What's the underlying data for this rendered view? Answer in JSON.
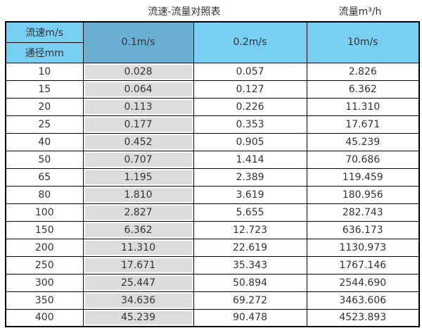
{
  "titles": {
    "main": "流速-流量对照表",
    "unit": "流量m³/h"
  },
  "colors": {
    "header_light_blue": "#79cff2",
    "header_dark_blue": "#69b0d3",
    "highlight_column_gray": "#dcdcdc",
    "border": "#000000",
    "text": "#333333",
    "background": "#ffffff"
  },
  "table": {
    "corner": {
      "velocity_label": "流速m/s",
      "diameter_label": "通径mm"
    },
    "velocity_headers": [
      "0.1m/s",
      "0.2m/s",
      "10m/s"
    ],
    "rows": [
      {
        "diameter": "10",
        "values": [
          "0.028",
          "0.057",
          "2.826"
        ]
      },
      {
        "diameter": "15",
        "values": [
          "0.064",
          "0.127",
          "6.362"
        ]
      },
      {
        "diameter": "20",
        "values": [
          "0.113",
          "0.226",
          "11.310"
        ]
      },
      {
        "diameter": "25",
        "values": [
          "0.177",
          "0.353",
          "17.671"
        ]
      },
      {
        "diameter": "40",
        "values": [
          "0.452",
          "0.905",
          "45.239"
        ]
      },
      {
        "diameter": "50",
        "values": [
          "0.707",
          "1.414",
          "70.686"
        ]
      },
      {
        "diameter": "65",
        "values": [
          "1.195",
          "2.389",
          "119.459"
        ]
      },
      {
        "diameter": "80",
        "values": [
          "1.810",
          "3.619",
          "180.956"
        ]
      },
      {
        "diameter": "100",
        "values": [
          "2.827",
          "5.655",
          "282.743"
        ]
      },
      {
        "diameter": "150",
        "values": [
          "6.362",
          "12.723",
          "636.173"
        ]
      },
      {
        "diameter": "200",
        "values": [
          "11.310",
          "22.619",
          "1130.973"
        ]
      },
      {
        "diameter": "250",
        "values": [
          "17.671",
          "35.343",
          "1767.146"
        ]
      },
      {
        "diameter": "300",
        "values": [
          "25.447",
          "50.894",
          "2544.690"
        ]
      },
      {
        "diameter": "350",
        "values": [
          "34.636",
          "69.272",
          "3463.606"
        ]
      },
      {
        "diameter": "400",
        "values": [
          "45.239",
          "90.478",
          "4523.893"
        ]
      }
    ]
  }
}
